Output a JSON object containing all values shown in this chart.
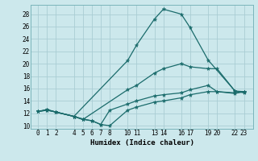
{
  "xlabel": "Humidex (Indice chaleur)",
  "background_color": "#cce8ec",
  "grid_color": "#aacdd4",
  "line_color": "#1a6b6b",
  "xlim": [
    -0.8,
    24.0
  ],
  "ylim": [
    9.5,
    29.5
  ],
  "xticks": [
    0,
    1,
    2,
    4,
    5,
    6,
    7,
    8,
    10,
    11,
    13,
    14,
    16,
    17,
    19,
    20,
    22,
    23
  ],
  "xtick_labels": [
    "0",
    "1",
    "2",
    "4",
    "5",
    "6",
    "7",
    "8",
    "10",
    "11",
    "13",
    "14",
    "16",
    "17",
    "19",
    "20",
    "22",
    "23"
  ],
  "yticks": [
    10,
    12,
    14,
    16,
    18,
    20,
    22,
    24,
    26,
    28
  ],
  "lines": [
    {
      "x": [
        0,
        1,
        2,
        4,
        10,
        11,
        13,
        14,
        16,
        17,
        19,
        22,
        23
      ],
      "y": [
        12.3,
        12.6,
        12.2,
        11.5,
        20.5,
        23.0,
        27.2,
        28.8,
        28.0,
        25.8,
        20.6,
        15.6,
        15.3
      ]
    },
    {
      "x": [
        0,
        1,
        2,
        4,
        5,
        10,
        11,
        13,
        14,
        16,
        17,
        19,
        20,
        22,
        23
      ],
      "y": [
        12.3,
        12.6,
        12.2,
        11.5,
        11.0,
        15.8,
        16.5,
        18.5,
        19.2,
        20.0,
        19.5,
        19.2,
        19.2,
        15.6,
        15.5
      ]
    },
    {
      "x": [
        0,
        1,
        2,
        4,
        5,
        6,
        7,
        8,
        10,
        11,
        13,
        14,
        16,
        17,
        19,
        20,
        22,
        23
      ],
      "y": [
        12.3,
        12.5,
        12.2,
        11.5,
        11.0,
        10.8,
        10.2,
        12.5,
        13.5,
        14.0,
        14.8,
        15.0,
        15.3,
        15.8,
        16.5,
        15.5,
        15.2,
        15.5
      ]
    },
    {
      "x": [
        0,
        1,
        2,
        4,
        5,
        6,
        7,
        8,
        10,
        11,
        13,
        14,
        16,
        17,
        19,
        20,
        22,
        23
      ],
      "y": [
        12.3,
        12.5,
        12.2,
        11.5,
        11.1,
        10.8,
        10.2,
        10.0,
        12.5,
        13.0,
        13.8,
        14.0,
        14.5,
        15.0,
        15.5,
        15.5,
        15.3,
        15.5
      ]
    }
  ]
}
